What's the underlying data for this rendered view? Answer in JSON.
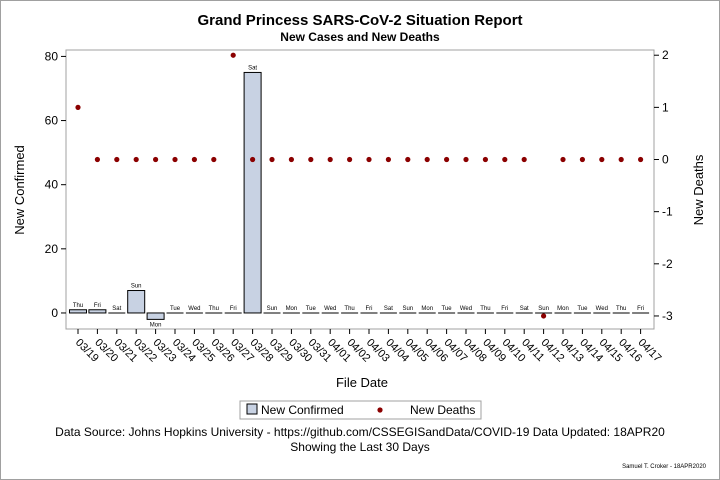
{
  "chart_data": {
    "type": "bar",
    "title": "Grand Princess SARS-CoV-2 Situation Report",
    "subtitle": "New Cases and New Deaths",
    "xlabel": "File Date",
    "ylabel": "New Confirmed",
    "y2label": "New Deaths",
    "ylim": [
      -5,
      82
    ],
    "y2lim": [
      -3.25,
      2.1
    ],
    "yticks": [
      "0",
      "20",
      "40",
      "60",
      "80"
    ],
    "y2ticks": [
      "-3",
      "-2",
      "-1",
      "0",
      "1",
      "2"
    ],
    "categories": [
      "03/19",
      "03/20",
      "03/21",
      "03/22",
      "03/23",
      "03/24",
      "03/25",
      "03/26",
      "03/27",
      "03/28",
      "03/29",
      "03/30",
      "03/31",
      "04/01",
      "04/02",
      "04/03",
      "04/04",
      "04/05",
      "04/06",
      "04/07",
      "04/08",
      "04/09",
      "04/10",
      "04/11",
      "04/12",
      "04/13",
      "04/14",
      "04/15",
      "04/16",
      "04/17"
    ],
    "weekdays": [
      "Thu",
      "Fri",
      "Sat",
      "Sun",
      "Mon",
      "Tue",
      "Wed",
      "Thu",
      "Fri",
      "Sat",
      "Sun",
      "Mon",
      "Tue",
      "Wed",
      "Thu",
      "Fri",
      "Sat",
      "Sun",
      "Mon",
      "Tue",
      "Wed",
      "Thu",
      "Fri",
      "Sat",
      "Sun",
      "Mon",
      "Tue",
      "Wed",
      "Thu",
      "Fri"
    ],
    "series": [
      {
        "name": "New Confirmed",
        "kind": "bar",
        "axis": "left",
        "color": "#c8d2e3",
        "values": [
          1,
          1,
          0,
          7,
          -2,
          0,
          0,
          0,
          0,
          75,
          0,
          0,
          0,
          0,
          0,
          0,
          0,
          0,
          0,
          0,
          0,
          0,
          0,
          0,
          0,
          0,
          0,
          0,
          0,
          0
        ]
      },
      {
        "name": "New Deaths",
        "kind": "scatter",
        "axis": "right",
        "color": "#8b0000",
        "values": [
          1,
          0,
          0,
          0,
          0,
          0,
          0,
          0,
          2,
          0,
          0,
          0,
          0,
          0,
          0,
          0,
          0,
          0,
          0,
          0,
          0,
          0,
          0,
          0,
          -3,
          0,
          0,
          0,
          0,
          0
        ]
      }
    ],
    "grid": false,
    "legend_position": "bottom-center"
  },
  "footer": {
    "source": "Data Source: Johns Hopkins University - https://github.com/CSSEGISandData/COVID-19 Data Updated: 18APR20",
    "window": "Showing the Last 30 Days",
    "credit": "Samuel T. Croker - 18APR2020"
  }
}
